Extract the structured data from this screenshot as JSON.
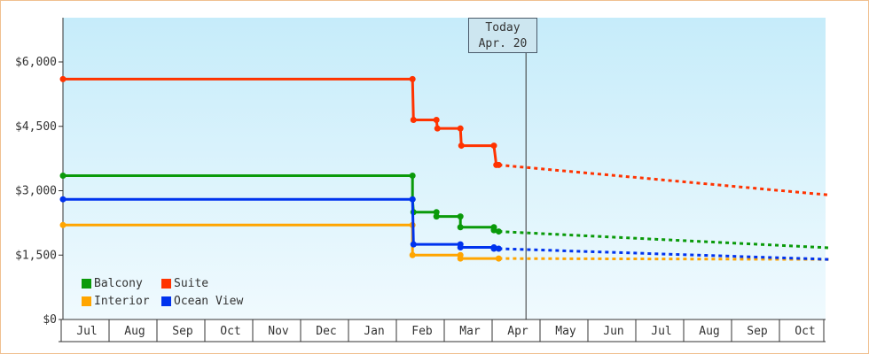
{
  "chart_data": {
    "type": "line",
    "step": true,
    "x_axis": {
      "ticks": [
        "Jul",
        "Aug",
        "Sep",
        "Oct",
        "Nov",
        "Dec",
        "Jan",
        "Feb",
        "Mar",
        "Apr",
        "May",
        "Jun",
        "Jul",
        "Aug",
        "Sep",
        "Oct"
      ],
      "range_months": [
        0,
        16
      ]
    },
    "y_axis": {
      "ticks": [
        "$0",
        "$1,500",
        "$3,000",
        "$4,500",
        "$6,000"
      ],
      "tick_values": [
        0,
        1500,
        3000,
        4500,
        6000
      ],
      "range": [
        0,
        6000
      ]
    },
    "today": {
      "line1": "Today",
      "line2": "Apr. 20",
      "x": 9.67
    },
    "legend_placement": "bottom-left",
    "series": [
      {
        "name": "Balcony",
        "color": "#0a9a0a",
        "actual": [
          [
            0,
            3350
          ],
          [
            7.3,
            3350
          ],
          [
            7.3,
            2800
          ],
          [
            7.32,
            2500
          ],
          [
            7.8,
            2500
          ],
          [
            7.8,
            2400
          ],
          [
            8.3,
            2400
          ],
          [
            8.3,
            2150
          ],
          [
            9.0,
            2150
          ],
          [
            9.0,
            2080
          ],
          [
            9.1,
            2050
          ]
        ],
        "forecast": [
          [
            9.1,
            2050
          ],
          [
            16,
            1670
          ]
        ]
      },
      {
        "name": "Suite",
        "color": "#ff3300",
        "actual": [
          [
            0,
            5600
          ],
          [
            7.3,
            5600
          ],
          [
            7.32,
            4650
          ],
          [
            7.8,
            4650
          ],
          [
            7.82,
            4450
          ],
          [
            8.3,
            4450
          ],
          [
            8.32,
            4050
          ],
          [
            9.0,
            4050
          ],
          [
            9.05,
            3600
          ],
          [
            9.1,
            3600
          ]
        ],
        "forecast": [
          [
            9.1,
            3600
          ],
          [
            16,
            2900
          ]
        ]
      },
      {
        "name": "Interior",
        "color": "#ffa500",
        "actual": [
          [
            0,
            2200
          ],
          [
            7.3,
            2200
          ],
          [
            7.3,
            1500
          ],
          [
            8.3,
            1500
          ],
          [
            8.3,
            1420
          ],
          [
            9.1,
            1420
          ]
        ],
        "forecast": [
          [
            9.1,
            1420
          ],
          [
            16,
            1400
          ]
        ]
      },
      {
        "name": "Ocean View",
        "color": "#0033ee",
        "actual": [
          [
            0,
            2800
          ],
          [
            7.3,
            2800
          ],
          [
            7.32,
            1750
          ],
          [
            8.3,
            1750
          ],
          [
            8.3,
            1680
          ],
          [
            9.0,
            1680
          ],
          [
            9.0,
            1650
          ],
          [
            9.1,
            1650
          ]
        ],
        "forecast": [
          [
            9.1,
            1650
          ],
          [
            16,
            1400
          ]
        ]
      }
    ]
  }
}
